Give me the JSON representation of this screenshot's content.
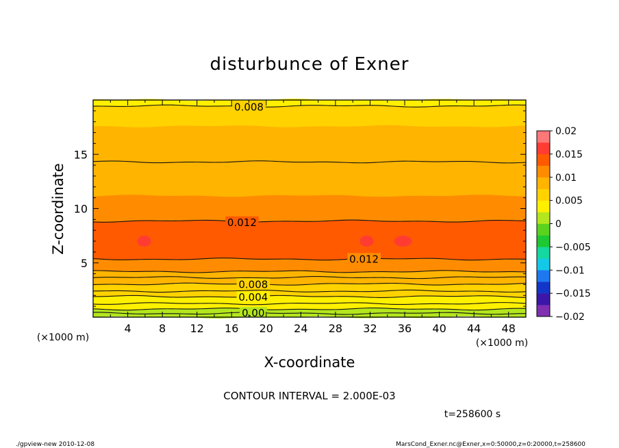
{
  "chart_data": {
    "type": "heatmap",
    "title": "disturbunce of Exner",
    "xlabel": "X-coordinate",
    "ylabel": "Z-coordinate",
    "xunit": "(×1000 m)",
    "yunit": "(×1000 m)",
    "xlim": [
      0,
      50
    ],
    "ylim": [
      0,
      20
    ],
    "xticks": [
      4,
      8,
      12,
      16,
      20,
      24,
      28,
      32,
      36,
      40,
      44,
      48
    ],
    "yticks": [
      5,
      10,
      15
    ],
    "contour_interval_text": "CONTOUR INTERVAL = 2.000E-03",
    "time_text": "t=258600 s",
    "colorbar": {
      "min": -0.02,
      "max": 0.02,
      "step": 0.0025,
      "ticks": [
        "0.02",
        "0.015",
        "0.01",
        "0.005",
        "0",
        "−0.005",
        "−0.01",
        "−0.015",
        "−0.02"
      ],
      "colors": [
        "#7f2fb0",
        "#3c16a8",
        "#1436c8",
        "#1e78f0",
        "#14c8e8",
        "#14d8a0",
        "#1ec832",
        "#5ad21e",
        "#b4e61e",
        "#fff000",
        "#ffd200",
        "#ffb400",
        "#ff8c00",
        "#ff5a00",
        "#ff3c32",
        "#ff7878"
      ]
    },
    "bands": [
      {
        "z0": 0.0,
        "z1": 0.35,
        "value": 0.0
      },
      {
        "z0": 0.35,
        "z1": 0.75,
        "value": 0.001
      },
      {
        "z0": 0.75,
        "z1": 1.25,
        "value": 0.003
      },
      {
        "z0": 1.25,
        "z1": 1.9,
        "value": 0.004
      },
      {
        "z0": 1.9,
        "z1": 2.4,
        "value": 0.006
      },
      {
        "z0": 2.4,
        "z1": 3.05,
        "value": 0.007
      },
      {
        "z0": 3.05,
        "z1": 3.65,
        "value": 0.008
      },
      {
        "z0": 3.65,
        "z1": 4.2,
        "value": 0.0085
      },
      {
        "z0": 4.2,
        "z1": 5.35,
        "value": 0.011
      },
      {
        "z0": 5.35,
        "z1": 8.85,
        "value": 0.0135
      },
      {
        "z0": 8.85,
        "z1": 11.2,
        "value": 0.011
      },
      {
        "z0": 11.2,
        "z1": 14.3,
        "value": 0.0085
      },
      {
        "z0": 14.3,
        "z1": 17.6,
        "value": 0.0085
      },
      {
        "z0": 17.6,
        "z1": 19.45,
        "value": 0.0055
      },
      {
        "z0": 19.45,
        "z1": 20.0,
        "value": 0.0035
      }
    ],
    "contours": [
      {
        "z": 0.35,
        "label": "0.00",
        "label_x": 18.5
      },
      {
        "z": 0.75,
        "label": "",
        "label_x": null
      },
      {
        "z": 1.25,
        "label": "",
        "label_x": null
      },
      {
        "z": 1.9,
        "label": "0.004",
        "label_x": 18.5
      },
      {
        "z": 2.4,
        "label": "",
        "label_x": null
      },
      {
        "z": 3.05,
        "label": "0.008",
        "label_x": 18.5
      },
      {
        "z": 3.65,
        "label": "",
        "label_x": null
      },
      {
        "z": 4.2,
        "label": "",
        "label_x": null
      },
      {
        "z": 5.35,
        "label": "0.012",
        "label_x": 31.3
      },
      {
        "z": 8.85,
        "label": "0.012",
        "label_x": 17.2
      },
      {
        "z": 14.3,
        "label": "",
        "label_x": null
      },
      {
        "z": 19.45,
        "label": "0.008",
        "label_x": 18.0
      }
    ],
    "maxima": [
      {
        "x": 5.9,
        "z": 7.0,
        "value": 0.015
      },
      {
        "x": 31.6,
        "z": 7.0,
        "value": 0.015
      },
      {
        "x": 35.8,
        "z": 7.0,
        "value": 0.015
      }
    ]
  },
  "footer": {
    "left": "./gpview-new   2010-12-08",
    "right": "MarsCond_Exner.nc@Exner,x=0:50000,z=0:20000,t=258600"
  }
}
